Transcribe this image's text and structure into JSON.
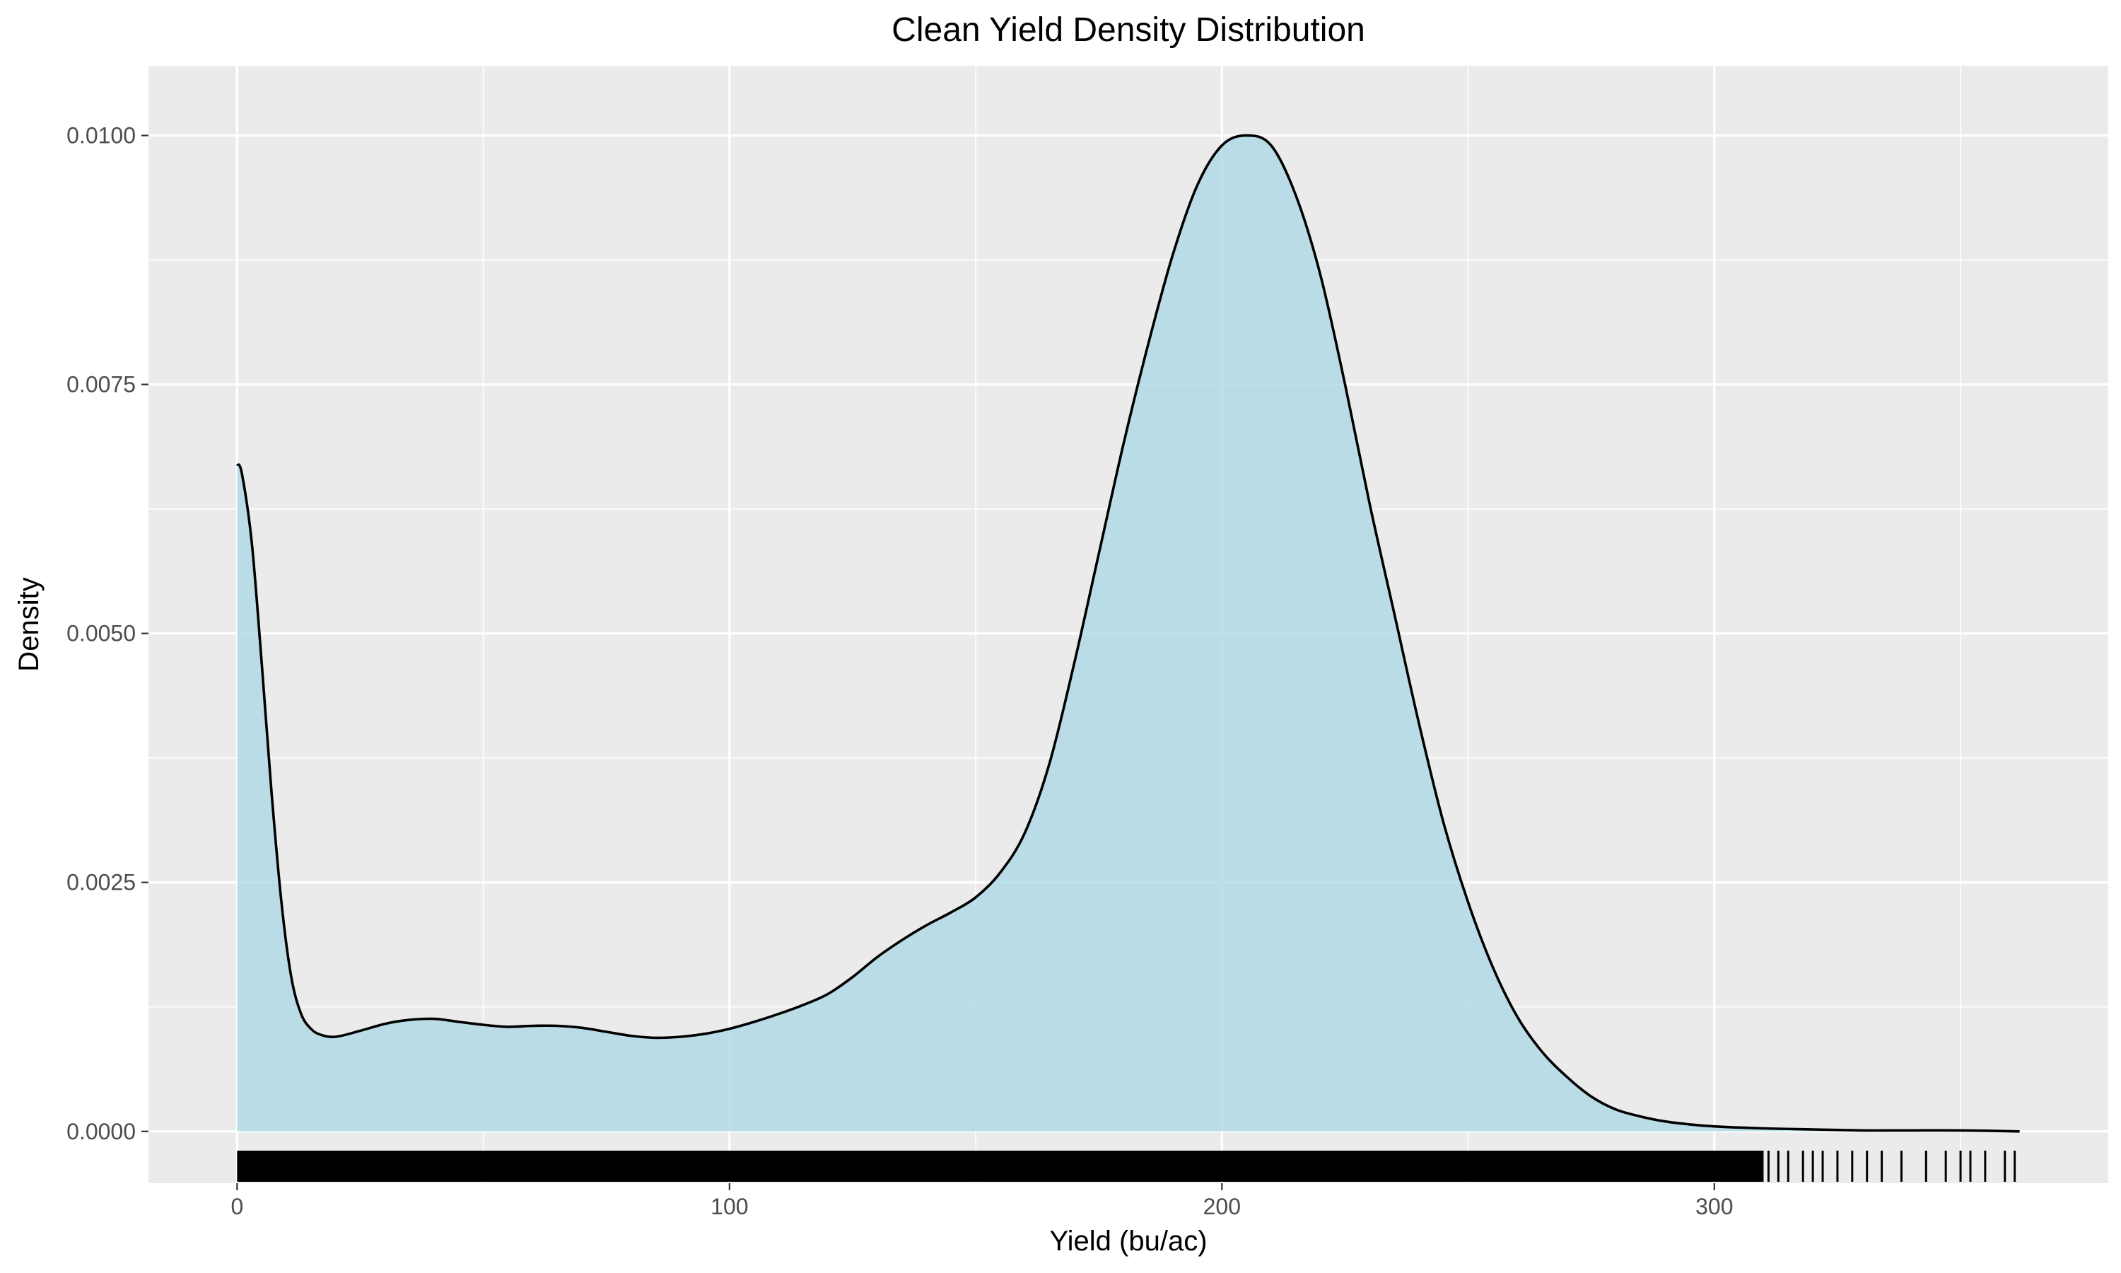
{
  "chart_data": {
    "type": "area",
    "title": "Clean Yield Density Distribution",
    "xlabel": "Yield (bu/ac)",
    "ylabel": "Density",
    "xlim": [
      -18,
      380
    ],
    "ylim": [
      -0.00052,
      0.0107
    ],
    "x_ticks": [
      0,
      100,
      200,
      300
    ],
    "y_ticks": [
      0.0,
      0.0025,
      0.005,
      0.0075,
      0.01
    ],
    "x_tick_labels": [
      "0",
      "100",
      "200",
      "300"
    ],
    "y_tick_labels": [
      "0.0000",
      "0.0025",
      "0.0050",
      "0.0075",
      "0.0100"
    ],
    "grid": true,
    "legend": "none",
    "colors": {
      "panel_background": "#ebebeb",
      "grid_line": "#ffffff",
      "fill": "#add8e6",
      "fill_opacity": 0.8,
      "line": "#000000",
      "rug": "#000000"
    },
    "series": [
      {
        "x": [
          0,
          1,
          3,
          5,
          7,
          9,
          11,
          13,
          15,
          17,
          20,
          25,
          30,
          35,
          40,
          45,
          50,
          55,
          60,
          65,
          70,
          75,
          80,
          85,
          90,
          95,
          100,
          105,
          110,
          115,
          120,
          125,
          130,
          135,
          140,
          145,
          150,
          155,
          160,
          165,
          170,
          175,
          180,
          185,
          190,
          195,
          200,
          205,
          210,
          215,
          220,
          225,
          230,
          235,
          240,
          245,
          250,
          255,
          260,
          265,
          270,
          275,
          280,
          285,
          290,
          295,
          300,
          310,
          320,
          330,
          340,
          350,
          362
        ],
        "y": [
          0.0067,
          0.0066,
          0.0059,
          0.0047,
          0.0034,
          0.0023,
          0.00155,
          0.00118,
          0.00103,
          0.00097,
          0.00095,
          0.00101,
          0.00108,
          0.00112,
          0.00113,
          0.0011,
          0.00107,
          0.00105,
          0.00106,
          0.00106,
          0.00104,
          0.001,
          0.00096,
          0.00094,
          0.00095,
          0.00098,
          0.00103,
          0.0011,
          0.00118,
          0.00127,
          0.00138,
          0.00155,
          0.00175,
          0.00192,
          0.00207,
          0.0022,
          0.00235,
          0.0026,
          0.003,
          0.0037,
          0.0047,
          0.0058,
          0.0069,
          0.0079,
          0.0088,
          0.0095,
          0.0099,
          0.01,
          0.0099,
          0.0094,
          0.0086,
          0.0075,
          0.0063,
          0.0052,
          0.0041,
          0.0031,
          0.0023,
          0.00165,
          0.00115,
          0.0008,
          0.00055,
          0.00035,
          0.00022,
          0.00015,
          0.0001,
          7e-05,
          5e-05,
          3e-05,
          2e-05,
          1e-05,
          1e-05,
          1e-05,
          0.0
        ]
      }
    ],
    "rug": {
      "dense_range": [
        0,
        310
      ],
      "sparse_x": [
        311,
        313,
        315,
        318,
        320,
        322,
        325,
        328,
        331,
        334,
        338,
        343,
        347,
        350,
        352,
        355,
        359,
        361
      ]
    }
  }
}
